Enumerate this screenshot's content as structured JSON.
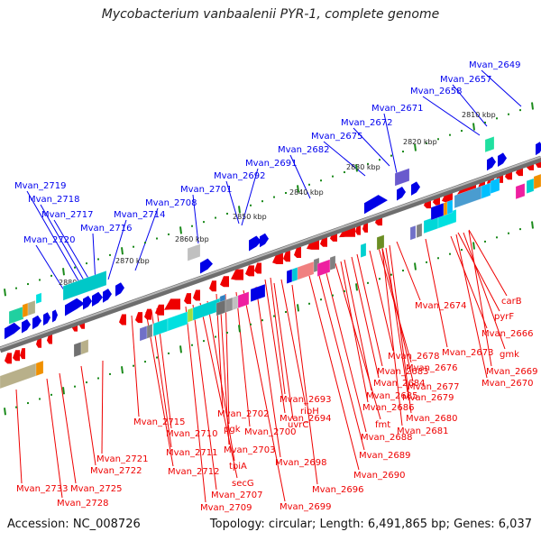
{
  "title": "Mycobacterium vanbaalenii PYR-1, complete genome",
  "footer": {
    "accession": "Accession: NC_008726",
    "summary": "Topology: circular; Length: 6,491,865 bp; Genes: 6,037"
  },
  "colors": {
    "forward_label": "#0000ee",
    "reverse_label": "#ee0000",
    "backbone": "#808080",
    "tick": "#1a8a1a",
    "forward_gene": "#0000e6",
    "reverse_gene": "#ee0000"
  },
  "scale_ticks": [
    "2810 kbp",
    "2820 kbp",
    "2830 kbp",
    "2840 kbp",
    "2850 kbp",
    "2860 kbp",
    "2870 kbp",
    "2880 kbp"
  ],
  "forward_labels": [
    "Mvan_2649",
    "Mvan_2657",
    "Mvan_2658",
    "Mvan_2671",
    "Mvan_2672",
    "Mvan_2675",
    "Mvan_2682",
    "Mvan_2691",
    "Mvan_2692",
    "Mvan_2701",
    "Mvan_2708",
    "Mvan_2714",
    "Mvan_2716",
    "Mvan_2717",
    "Mvan_2718",
    "Mvan_2719",
    "Mvan_2720"
  ],
  "reverse_labels": [
    "carB",
    "pyrF",
    "Mvan_2666",
    "gmk",
    "Mvan_2669",
    "Mvan_2670",
    "Mvan_2673",
    "Mvan_2674",
    "Mvan_2676",
    "Mvan_2677",
    "Mvan_2678",
    "Mvan_2679",
    "Mvan_2680",
    "Mvan_2681",
    "Mvan_2683",
    "Mvan_2684",
    "Mvan_2685",
    "Mvan_2686",
    "fmt",
    "Mvan_2688",
    "Mvan_2689",
    "Mvan_2690",
    "Mvan_2693",
    "Mvan_2694",
    "ribH",
    "uvrC",
    "Mvan_2696",
    "Mvan_2698",
    "Mvan_2699",
    "Mvan_2700",
    "Mvan_2702",
    "pgk",
    "Mvan_2703",
    "tpiA",
    "secG",
    "Mvan_2707",
    "Mvan_2709",
    "Mvan_2710",
    "Mvan_2711",
    "Mvan_2712",
    "Mvan_2715",
    "Mvan_2721",
    "Mvan_2722",
    "Mvan_2725",
    "Mvan_2728",
    "Mvan_2733"
  ]
}
